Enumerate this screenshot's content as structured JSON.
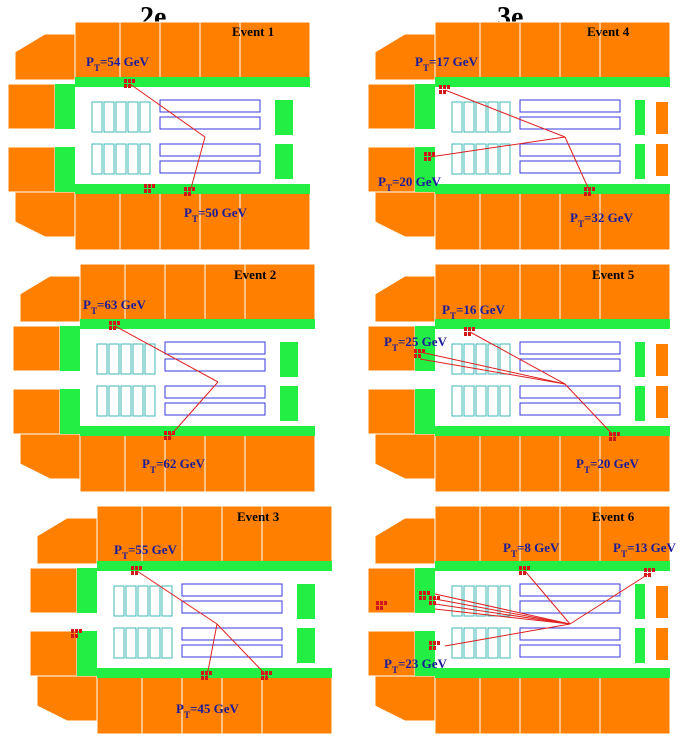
{
  "columns": [
    "2e",
    "3e"
  ],
  "colors": {
    "calorimeter": "#ff8000",
    "preshower": "#22ee44",
    "tracker_fiber": "#3fb7b7",
    "tracker_silicon": "#3a3adf",
    "track": "#e02020",
    "energy": "#d01818",
    "label": "#1a1a9a"
  },
  "events": [
    {
      "title": "Event 1",
      "pt": [
        "54 GeV",
        "50 GeV"
      ]
    },
    {
      "title": "Event 4",
      "pt": [
        "17 GeV",
        "20 GeV",
        "32 GeV"
      ]
    },
    {
      "title": "Event 2",
      "pt": [
        "63 GeV",
        "62 GeV"
      ]
    },
    {
      "title": "Event 5",
      "pt": [
        "16 GeV",
        "25 GeV",
        "20 GeV"
      ]
    },
    {
      "title": "Event 3",
      "pt": [
        "55 GeV",
        "45 GeV"
      ]
    },
    {
      "title": "Event 6",
      "pt": [
        "8 GeV",
        "13 GeV",
        "23 GeV"
      ]
    }
  ]
}
